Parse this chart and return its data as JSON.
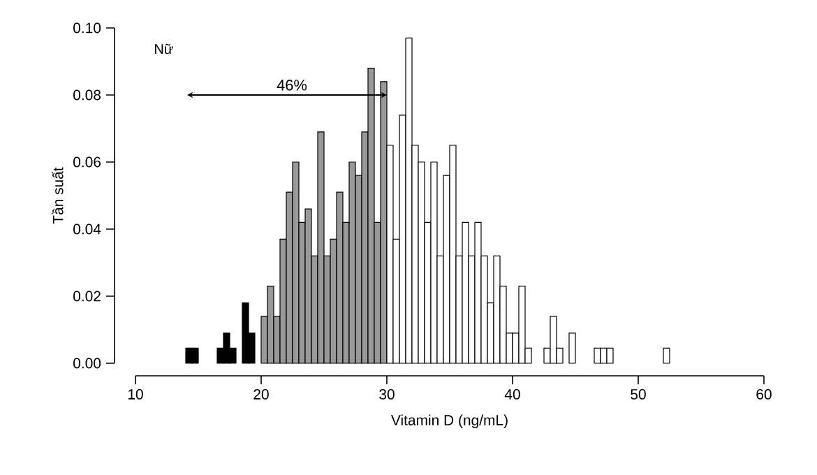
{
  "chart_data": {
    "type": "histogram",
    "xlabel": "Vitamin D (ng/mL)",
    "ylabel": "Tần suất",
    "annotations": [
      "Nữ",
      "46%"
    ],
    "bins": [
      14.0,
      14.5,
      15.0,
      15.5,
      16.0,
      16.5,
      17.0,
      17.5,
      18.0,
      18.5,
      19.0,
      19.5,
      20.0,
      20.5,
      21.0,
      21.5,
      22.0,
      22.5,
      23.0,
      23.5,
      24.0,
      24.5,
      25.0,
      25.5,
      26.0,
      26.5,
      27.0,
      27.5,
      28.0,
      28.5,
      29.0,
      29.5,
      30.0,
      30.5,
      31.0,
      31.5,
      32.0,
      32.5,
      33.0,
      33.5,
      34.0,
      34.5,
      35.0,
      35.5,
      36.0,
      36.5,
      37.0,
      37.5,
      38.0,
      38.5,
      39.0,
      39.5,
      40.0,
      40.5,
      41.0,
      41.5,
      42.0,
      42.5,
      43.0,
      43.5,
      44.0,
      44.5,
      45.0,
      45.5,
      46.0,
      46.5,
      47.0,
      47.5,
      48.0,
      48.5,
      49.0,
      49.5,
      50.0,
      50.5,
      51.0,
      51.5,
      52.0,
      52.5
    ],
    "values": [
      0.0045,
      0.0045,
      0,
      0,
      0,
      0.0045,
      0.009,
      0.0045,
      0,
      0.018,
      0.009,
      0,
      0.014,
      0.023,
      0.014,
      0.037,
      0.051,
      0.06,
      0.042,
      0.046,
      0.032,
      0.069,
      0.032,
      0.037,
      0.051,
      0.042,
      0.06,
      0.056,
      0.069,
      0.088,
      0.042,
      0.084,
      0.065,
      0.037,
      0.074,
      0.097,
      0.065,
      0.06,
      0.042,
      0.06,
      0.032,
      0.056,
      0.065,
      0.032,
      0.042,
      0.032,
      0.042,
      0.032,
      0.018,
      0.032,
      0.023,
      0.009,
      0.009,
      0.023,
      0.0045,
      0,
      0,
      0.0045,
      0.014,
      0.0045,
      0,
      0.009,
      0,
      0,
      0,
      0.0045,
      0.0045,
      0.0045,
      0,
      0,
      0,
      0,
      0,
      0,
      0,
      0,
      0.0045
    ],
    "colors": [
      "#000000",
      "#000000",
      "#000000",
      "#000000",
      "#000000",
      "#000000",
      "#000000",
      "#000000",
      "#000000",
      "#000000",
      "#000000",
      "#000000",
      "#999999",
      "#999999",
      "#999999",
      "#999999",
      "#999999",
      "#999999",
      "#999999",
      "#999999",
      "#999999",
      "#999999",
      "#999999",
      "#999999",
      "#999999",
      "#999999",
      "#999999",
      "#999999",
      "#999999",
      "#999999",
      "#999999",
      "#999999",
      "#ffffff",
      "#ffffff",
      "#ffffff",
      "#ffffff",
      "#ffffff",
      "#ffffff",
      "#ffffff",
      "#ffffff",
      "#ffffff",
      "#ffffff",
      "#ffffff",
      "#ffffff",
      "#ffffff",
      "#ffffff",
      "#ffffff",
      "#ffffff",
      "#ffffff",
      "#ffffff",
      "#ffffff",
      "#ffffff",
      "#ffffff",
      "#ffffff",
      "#ffffff",
      "#ffffff",
      "#ffffff",
      "#ffffff",
      "#ffffff",
      "#ffffff",
      "#ffffff",
      "#ffffff",
      "#ffffff",
      "#ffffff",
      "#ffffff",
      "#ffffff",
      "#ffffff",
      "#ffffff",
      "#ffffff",
      "#ffffff",
      "#ffffff",
      "#ffffff",
      "#ffffff",
      "#ffffff",
      "#ffffff",
      "#ffffff",
      "#ffffff"
    ],
    "xlim": [
      10,
      60
    ],
    "xticks": [
      10,
      20,
      30,
      40,
      50,
      60
    ],
    "ylim": [
      0,
      0.1
    ],
    "yticks": [
      {
        "value": 0,
        "label": "0.00"
      },
      {
        "value": 0.02,
        "label": "0.02"
      },
      {
        "value": 0.04,
        "label": "0.04"
      },
      {
        "value": 0.06,
        "label": "0.06"
      },
      {
        "value": 0.08,
        "label": "0.08"
      },
      {
        "value": 0.1,
        "label": "0.10"
      }
    ],
    "grid": false
  }
}
